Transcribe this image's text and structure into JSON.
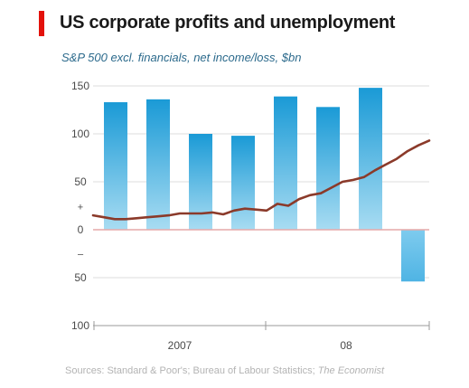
{
  "title": "US corporate profits and unemployment",
  "subtitle": "S&P 500 excl. financials, net income/loss, $bn",
  "source": {
    "prefix": "Sources: Standard & Poor's; Bureau of Labour Statistics;",
    "publication": "The Economist"
  },
  "colors": {
    "accent": "#e3120b",
    "bar_dark": "#1a9ad6",
    "bar_light": "#a8dcf2",
    "line": "#8b3a2a",
    "zero_line": "#e6a9a9",
    "grid": "#dcdcdc"
  },
  "chart_data": {
    "type": "bar",
    "grid": true,
    "ylim": [
      -100,
      150
    ],
    "y_ticks": [
      {
        "value": 150,
        "label": "150"
      },
      {
        "value": 100,
        "label": "100"
      },
      {
        "value": 50,
        "label": "50"
      },
      {
        "value": 0,
        "label": "0"
      },
      {
        "value": -50,
        "label": "50"
      },
      {
        "value": -100,
        "label": "100"
      }
    ],
    "sign_labels": {
      "positive": "+",
      "negative": "–"
    },
    "x_labels": [
      "2007",
      "08"
    ],
    "series": [
      {
        "kind": "bar",
        "values": [
          133,
          136,
          100,
          98,
          139,
          128,
          148,
          -54
        ]
      },
      {
        "kind": "line",
        "values": [
          15,
          13,
          11,
          11,
          12,
          13,
          14,
          15,
          17,
          17,
          17,
          18,
          16,
          20,
          22,
          21,
          20,
          27,
          25,
          32,
          36,
          38,
          44,
          50,
          52,
          55,
          62,
          68,
          74,
          82,
          88,
          93
        ]
      }
    ]
  }
}
